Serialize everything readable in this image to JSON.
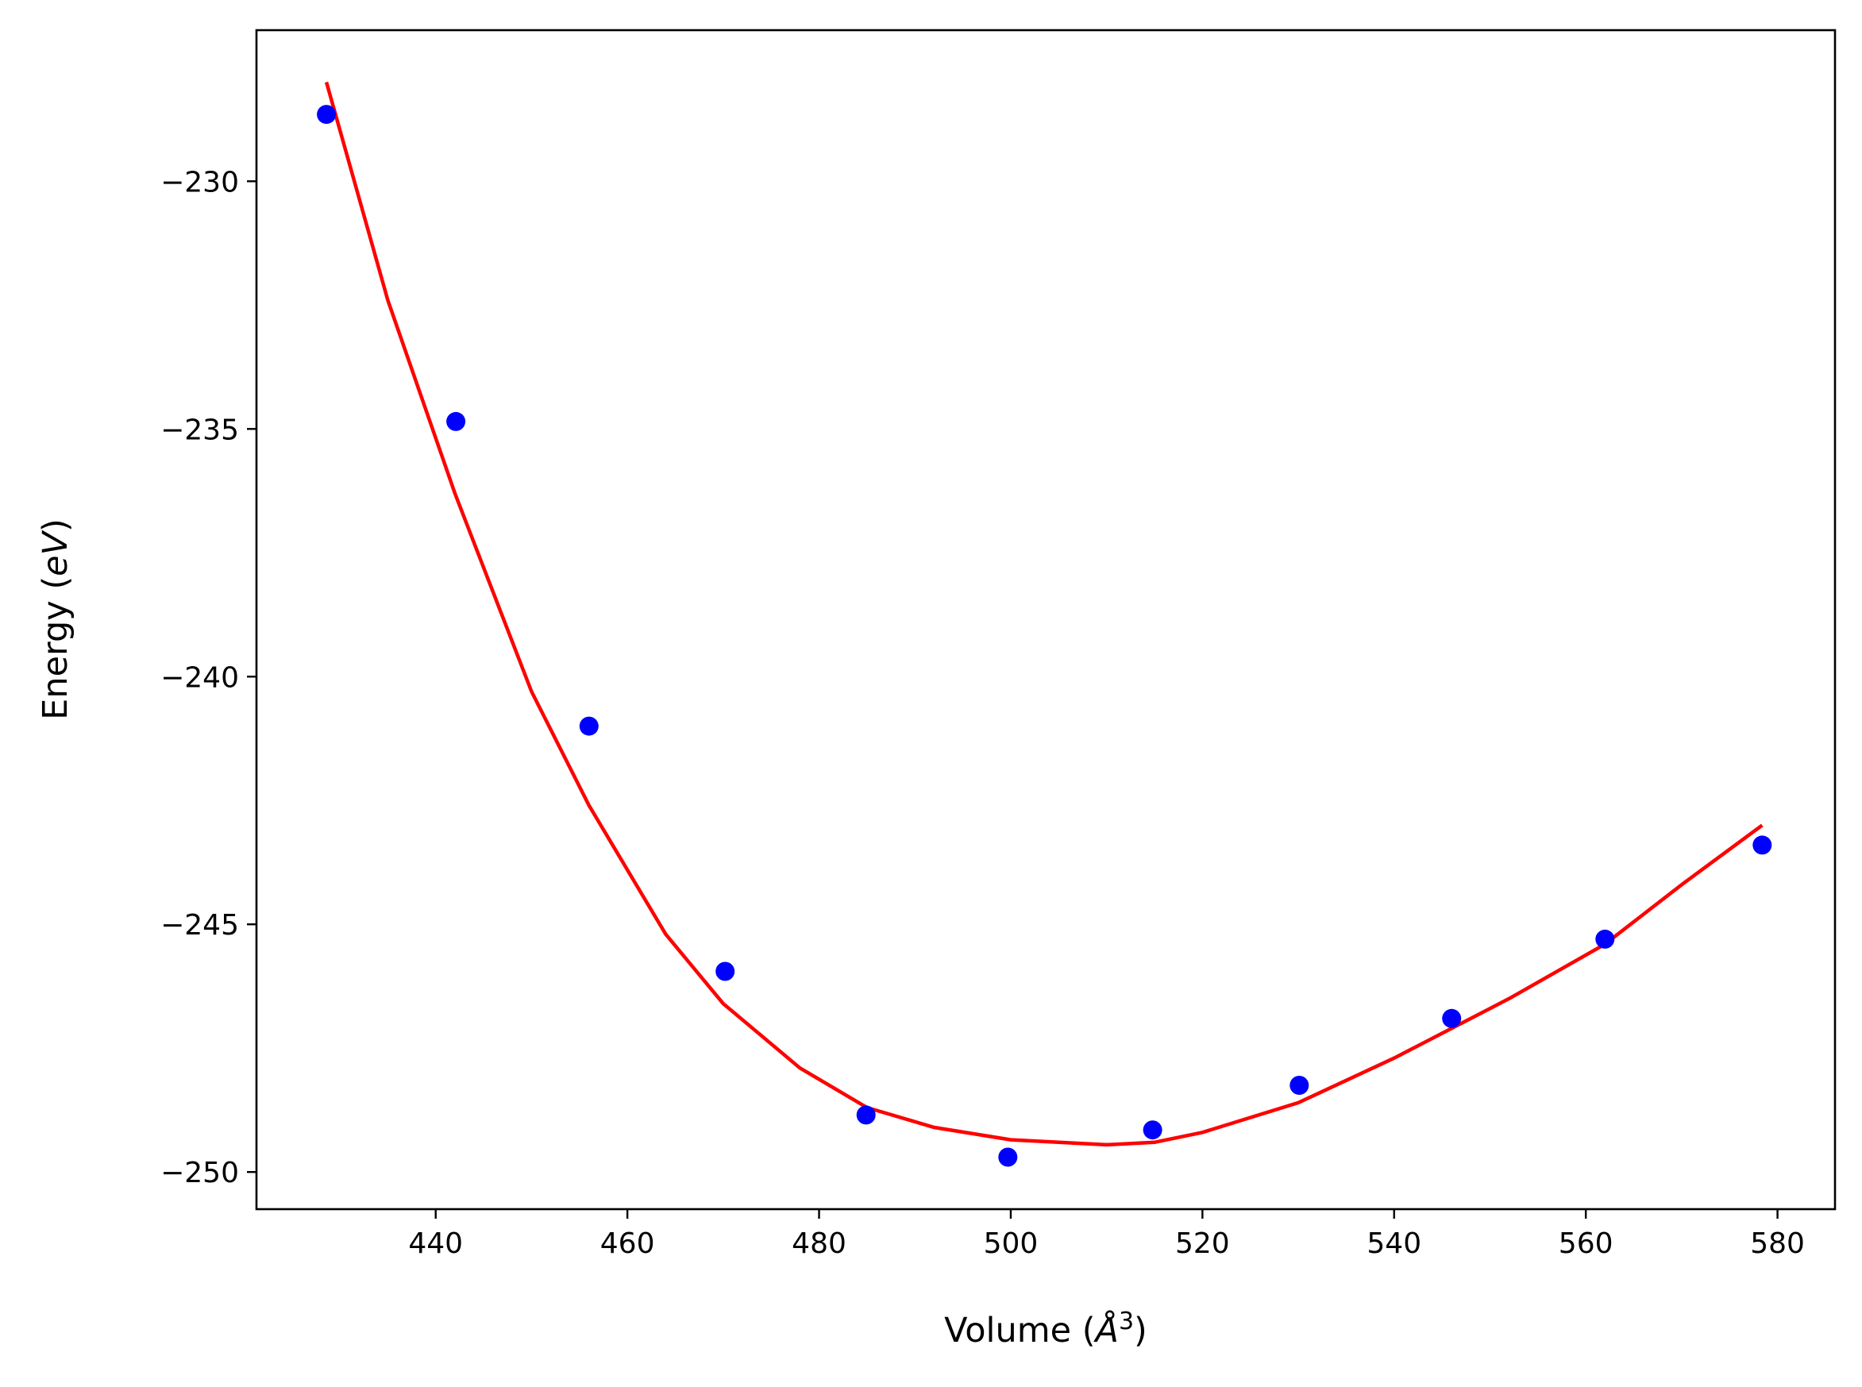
{
  "chart_data": {
    "type": "scatter",
    "xlabel": "Volume (Å³)",
    "ylabel": "Energy (eV)",
    "xlabel_parts": {
      "text": "Volume (",
      "italic": "Å",
      "sup": "3",
      "close": ")"
    },
    "ylabel_parts": {
      "text": "Energy (",
      "italic": "eV",
      "close": ")"
    },
    "xlim": [
      421.3,
      586.0
    ],
    "ylim": [
      -250.75,
      -226.95
    ],
    "xticks": [
      440,
      460,
      480,
      500,
      520,
      540,
      560,
      580
    ],
    "yticks": [
      -230,
      -235,
      -240,
      -245,
      -250
    ],
    "xtick_labels": [
      "440",
      "460",
      "480",
      "500",
      "520",
      "540",
      "560",
      "580"
    ],
    "ytick_labels": [
      "−230",
      "−235",
      "−240",
      "−245",
      "−250"
    ],
    "grid": false,
    "series": [
      {
        "kind": "points",
        "color": "#0000ff",
        "x": [
          428.6,
          442.1,
          456.0,
          470.2,
          484.9,
          499.7,
          514.8,
          530.1,
          546.0,
          562.0,
          578.4
        ],
        "y": [
          -228.65,
          -234.85,
          -241.0,
          -245.95,
          -248.85,
          -249.7,
          -249.15,
          -248.25,
          -246.9,
          -245.3,
          -243.4
        ]
      },
      {
        "kind": "fit-curve",
        "color": "#ff0000",
        "x": [
          428.6,
          435,
          442,
          450,
          456,
          464,
          470,
          478,
          485,
          492,
          500,
          505,
          510,
          515,
          520,
          530,
          540,
          546,
          552,
          562,
          570,
          578.4
        ],
        "y": [
          -228.0,
          -232.4,
          -236.3,
          -240.3,
          -242.6,
          -245.2,
          -246.6,
          -247.9,
          -248.7,
          -249.1,
          -249.35,
          -249.4,
          -249.45,
          -249.4,
          -249.2,
          -248.6,
          -247.7,
          -247.1,
          -246.5,
          -245.4,
          -244.2,
          -243.0
        ]
      }
    ]
  }
}
